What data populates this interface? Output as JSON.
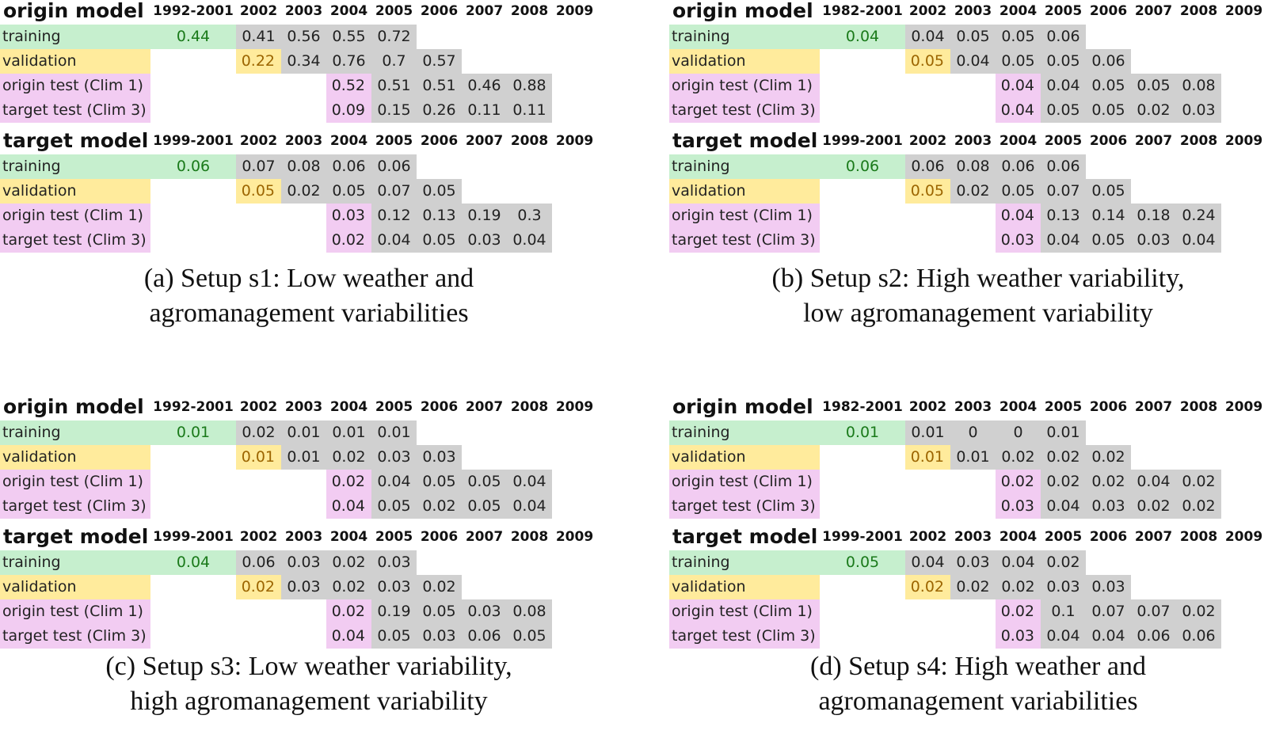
{
  "panels": [
    {
      "id": "a",
      "caption": [
        "(a) Setup s1: Low weather and",
        "agromanagement variabilities"
      ],
      "tables": [
        {
          "title": "origin model",
          "range": "1992-2001",
          "years": [
            "2002",
            "2003",
            "2004",
            "2005",
            "2006",
            "2007",
            "2008",
            "2009"
          ],
          "rows": [
            {
              "label": "training",
              "color": "green",
              "agg": "0.44",
              "vals": [
                "0.41",
                "0.56",
                "0.55",
                "0.72"
              ]
            },
            {
              "label": "validation",
              "color": "yellow",
              "agg": "0.22",
              "vals": [
                "0.34",
                "0.76",
                "0.7",
                "0.57"
              ]
            },
            {
              "label": "origin test (Clim 1)",
              "color": "pink",
              "agg": "0.52",
              "vals": [
                "0.51",
                "0.51",
                "0.46",
                "0.88"
              ]
            },
            {
              "label": "target test (Clim 3)",
              "color": "pink",
              "agg": "0.09",
              "vals": [
                "0.15",
                "0.26",
                "0.11",
                "0.11"
              ]
            }
          ]
        },
        {
          "title": "target model",
          "range": "1999-2001",
          "years": [
            "2002",
            "2003",
            "2004",
            "2005",
            "2006",
            "2007",
            "2008",
            "2009"
          ],
          "rows": [
            {
              "label": "training",
              "color": "green",
              "agg": "0.06",
              "vals": [
                "0.07",
                "0.08",
                "0.06",
                "0.06"
              ]
            },
            {
              "label": "validation",
              "color": "yellow",
              "agg": "0.05",
              "vals": [
                "0.02",
                "0.05",
                "0.07",
                "0.05"
              ]
            },
            {
              "label": "origin test (Clim 1)",
              "color": "pink",
              "agg": "0.03",
              "vals": [
                "0.12",
                "0.13",
                "0.19",
                "0.3"
              ]
            },
            {
              "label": "target test (Clim 3)",
              "color": "pink",
              "agg": "0.02",
              "vals": [
                "0.04",
                "0.05",
                "0.03",
                "0.04"
              ]
            }
          ]
        }
      ]
    },
    {
      "id": "b",
      "caption": [
        "(b) Setup s2: High weather variability,",
        "low agromanagement variability"
      ],
      "tables": [
        {
          "title": "origin model",
          "range": "1982-2001",
          "years": [
            "2002",
            "2003",
            "2004",
            "2005",
            "2006",
            "2007",
            "2008",
            "2009"
          ],
          "rows": [
            {
              "label": "training",
              "color": "green",
              "agg": "0.04",
              "vals": [
                "0.04",
                "0.05",
                "0.05",
                "0.06"
              ]
            },
            {
              "label": "validation",
              "color": "yellow",
              "agg": "0.05",
              "vals": [
                "0.04",
                "0.05",
                "0.05",
                "0.06"
              ]
            },
            {
              "label": "origin test (Clim 1)",
              "color": "pink",
              "agg": "0.04",
              "vals": [
                "0.04",
                "0.05",
                "0.05",
                "0.08"
              ]
            },
            {
              "label": "target test (Clim 3)",
              "color": "pink",
              "agg": "0.04",
              "vals": [
                "0.05",
                "0.05",
                "0.02",
                "0.03"
              ]
            }
          ]
        },
        {
          "title": "target model",
          "range": "1999-2001",
          "years": [
            "2002",
            "2003",
            "2004",
            "2005",
            "2006",
            "2007",
            "2008",
            "2009"
          ],
          "rows": [
            {
              "label": "training",
              "color": "green",
              "agg": "0.06",
              "vals": [
                "0.06",
                "0.08",
                "0.06",
                "0.06"
              ]
            },
            {
              "label": "validation",
              "color": "yellow",
              "agg": "0.05",
              "vals": [
                "0.02",
                "0.05",
                "0.07",
                "0.05"
              ]
            },
            {
              "label": "origin test (Clim 1)",
              "color": "pink",
              "agg": "0.04",
              "vals": [
                "0.13",
                "0.14",
                "0.18",
                "0.24"
              ]
            },
            {
              "label": "target test (Clim 3)",
              "color": "pink",
              "agg": "0.03",
              "vals": [
                "0.04",
                "0.05",
                "0.03",
                "0.04"
              ]
            }
          ]
        }
      ]
    },
    {
      "id": "c",
      "caption": [
        "(c) Setup s3: Low weather variability,",
        "high agromanagement variability"
      ],
      "tables": [
        {
          "title": "origin model",
          "range": "1992-2001",
          "years": [
            "2002",
            "2003",
            "2004",
            "2005",
            "2006",
            "2007",
            "2008",
            "2009"
          ],
          "rows": [
            {
              "label": "training",
              "color": "green",
              "agg": "0.01",
              "vals": [
                "0.02",
                "0.01",
                "0.01",
                "0.01"
              ]
            },
            {
              "label": "validation",
              "color": "yellow",
              "agg": "0.01",
              "vals": [
                "0.01",
                "0.02",
                "0.03",
                "0.03"
              ]
            },
            {
              "label": "origin test (Clim 1)",
              "color": "pink",
              "agg": "0.02",
              "vals": [
                "0.04",
                "0.05",
                "0.05",
                "0.04"
              ]
            },
            {
              "label": "target test (Clim 3)",
              "color": "pink",
              "agg": "0.04",
              "vals": [
                "0.05",
                "0.02",
                "0.05",
                "0.04"
              ]
            }
          ]
        },
        {
          "title": "target model",
          "range": "1999-2001",
          "years": [
            "2002",
            "2003",
            "2004",
            "2005",
            "2006",
            "2007",
            "2008",
            "2009"
          ],
          "rows": [
            {
              "label": "training",
              "color": "green",
              "agg": "0.04",
              "vals": [
                "0.06",
                "0.03",
                "0.02",
                "0.03"
              ]
            },
            {
              "label": "validation",
              "color": "yellow",
              "agg": "0.02",
              "vals": [
                "0.03",
                "0.02",
                "0.03",
                "0.02"
              ]
            },
            {
              "label": "origin test (Clim 1)",
              "color": "pink",
              "agg": "0.02",
              "vals": [
                "0.19",
                "0.05",
                "0.03",
                "0.08"
              ]
            },
            {
              "label": "target test (Clim 3)",
              "color": "pink",
              "agg": "0.04",
              "vals": [
                "0.05",
                "0.03",
                "0.06",
                "0.05"
              ]
            }
          ]
        }
      ]
    },
    {
      "id": "d",
      "caption": [
        "(d) Setup s4: High weather and",
        "agromanagement variabilities"
      ],
      "tables": [
        {
          "title": "origin model",
          "range": "1982-2001",
          "years": [
            "2002",
            "2003",
            "2004",
            "2005",
            "2006",
            "2007",
            "2008",
            "2009"
          ],
          "rows": [
            {
              "label": "training",
              "color": "green",
              "agg": "0.01",
              "vals": [
                "0.01",
                "0",
                "0",
                "0.01"
              ]
            },
            {
              "label": "validation",
              "color": "yellow",
              "agg": "0.01",
              "vals": [
                "0.01",
                "0.02",
                "0.02",
                "0.02"
              ]
            },
            {
              "label": "origin test (Clim 1)",
              "color": "pink",
              "agg": "0.02",
              "vals": [
                "0.02",
                "0.02",
                "0.04",
                "0.02"
              ]
            },
            {
              "label": "target test (Clim 3)",
              "color": "pink",
              "agg": "0.03",
              "vals": [
                "0.04",
                "0.03",
                "0.02",
                "0.02"
              ]
            }
          ]
        },
        {
          "title": "target model",
          "range": "1999-2001",
          "years": [
            "2002",
            "2003",
            "2004",
            "2005",
            "2006",
            "2007",
            "2008",
            "2009"
          ],
          "rows": [
            {
              "label": "training",
              "color": "green",
              "agg": "0.05",
              "vals": [
                "0.04",
                "0.03",
                "0.04",
                "0.02"
              ]
            },
            {
              "label": "validation",
              "color": "yellow",
              "agg": "0.02",
              "vals": [
                "0.02",
                "0.02",
                "0.03",
                "0.03"
              ]
            },
            {
              "label": "origin test (Clim 1)",
              "color": "pink",
              "agg": "0.02",
              "vals": [
                "0.1",
                "0.07",
                "0.07",
                "0.02"
              ]
            },
            {
              "label": "target test (Clim 3)",
              "color": "pink",
              "agg": "0.03",
              "vals": [
                "0.04",
                "0.04",
                "0.06",
                "0.06"
              ]
            }
          ]
        }
      ]
    }
  ]
}
